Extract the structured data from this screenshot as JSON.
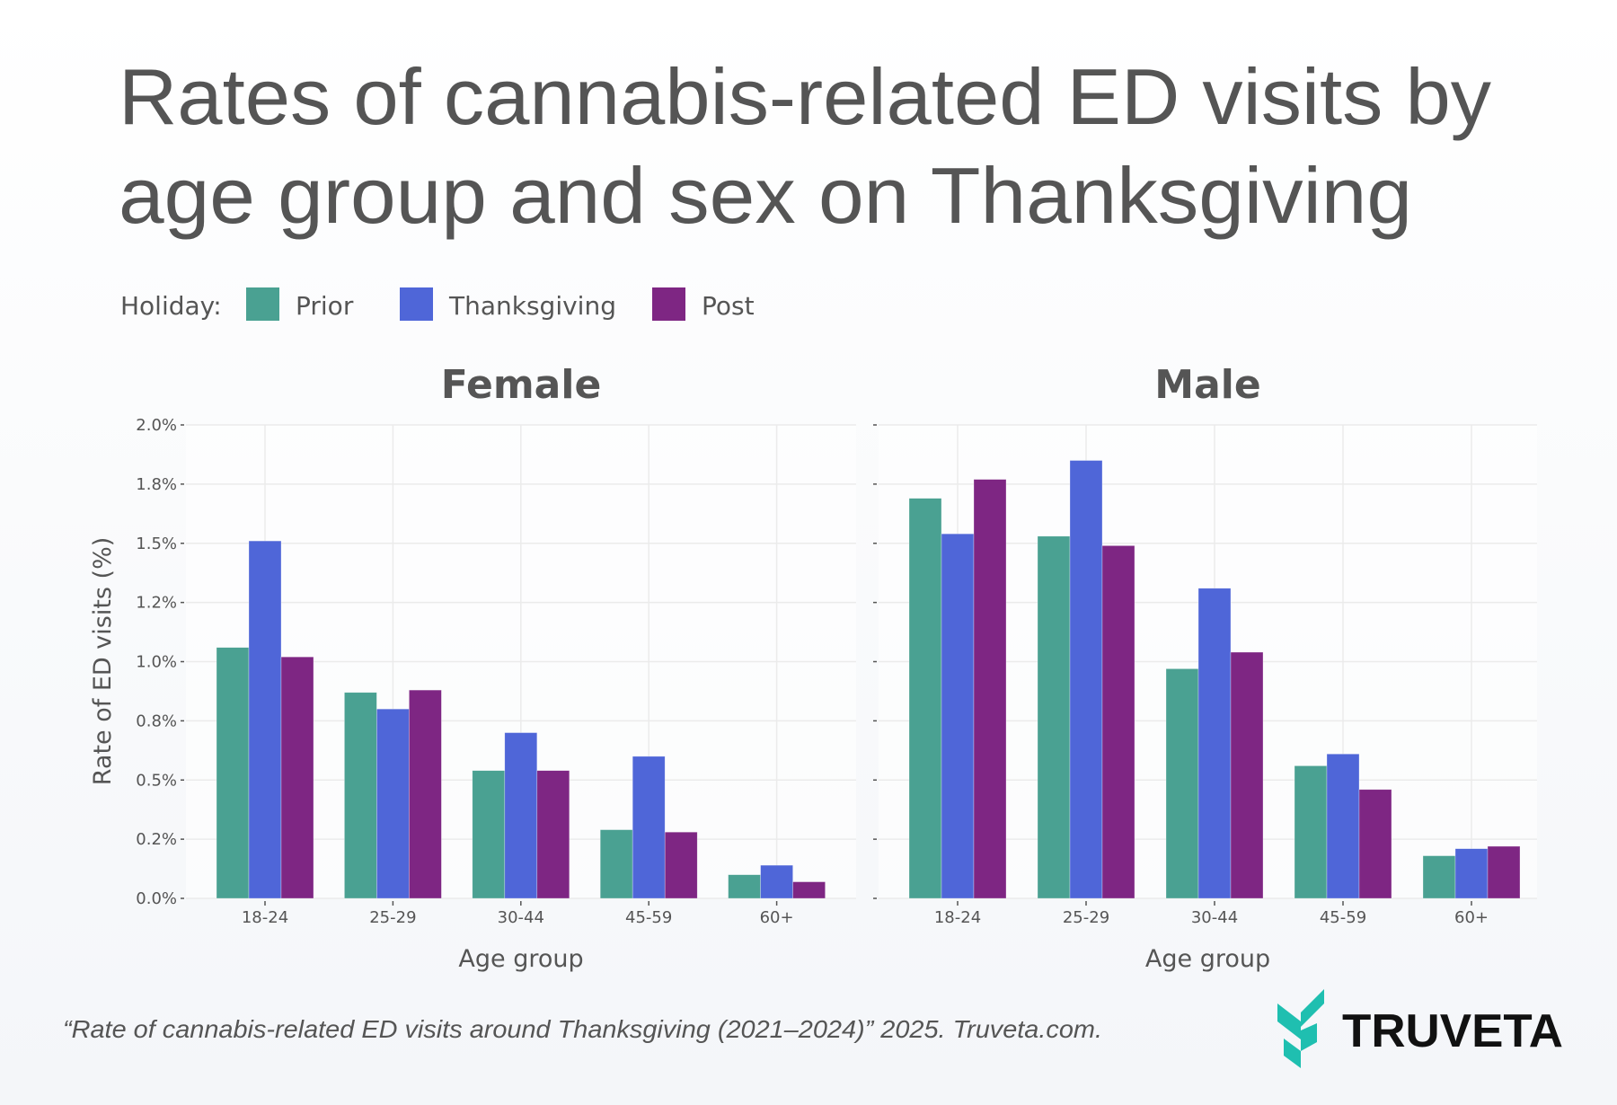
{
  "title_lines": [
    "Rates of cannabis-related ED visits by",
    "age group and sex on Thanksgiving"
  ],
  "legend": {
    "title": "Holiday:",
    "items": [
      {
        "label": "Prior",
        "color": "#4aa192"
      },
      {
        "label": "Thanksgiving",
        "color": "#4f66d8"
      },
      {
        "label": "Post",
        "color": "#7e2683"
      }
    ]
  },
  "footer": "“Rate of cannabis-related ED visits around Thanksgiving (2021–2024)” 2025. Truveta.com.",
  "logo": {
    "text": "TRUVETA",
    "color": "#1fbfb0"
  },
  "chart_data": [
    {
      "type": "bar",
      "title": "Female",
      "xlabel": "Age group",
      "ylabel": "Rate of ED visits (%)",
      "categories": [
        "18-24",
        "25-29",
        "30-44",
        "45-59",
        "60+"
      ],
      "ylim": [
        0,
        2.0
      ],
      "yticks": [
        0,
        0.25,
        0.5,
        0.75,
        1.0,
        1.25,
        1.5,
        1.75,
        2.0
      ],
      "ytick_labels": [
        "0.0%",
        "0.2%",
        "0.5%",
        "0.8%",
        "1.0%",
        "1.2%",
        "1.5%",
        "1.8%",
        "2.0%"
      ],
      "grid": true,
      "legend_placement": "top-left",
      "series": [
        {
          "name": "Prior",
          "values": [
            1.06,
            0.87,
            0.54,
            0.29,
            0.1
          ]
        },
        {
          "name": "Thanksgiving",
          "values": [
            1.51,
            0.8,
            0.7,
            0.6,
            0.14
          ]
        },
        {
          "name": "Post",
          "values": [
            1.02,
            0.88,
            0.54,
            0.28,
            0.07
          ]
        }
      ]
    },
    {
      "type": "bar",
      "title": "Male",
      "xlabel": "Age group",
      "categories": [
        "18-24",
        "25-29",
        "30-44",
        "45-59",
        "60+"
      ],
      "ylim": [
        0,
        2.0
      ],
      "yticks": [
        0,
        0.25,
        0.5,
        0.75,
        1.0,
        1.25,
        1.5,
        1.75,
        2.0
      ],
      "grid": true,
      "series": [
        {
          "name": "Prior",
          "values": [
            1.69,
            1.53,
            0.97,
            0.56,
            0.18
          ]
        },
        {
          "name": "Thanksgiving",
          "values": [
            1.54,
            1.85,
            1.31,
            0.61,
            0.21
          ]
        },
        {
          "name": "Post",
          "values": [
            1.77,
            1.49,
            1.04,
            0.46,
            0.22
          ]
        }
      ]
    }
  ]
}
